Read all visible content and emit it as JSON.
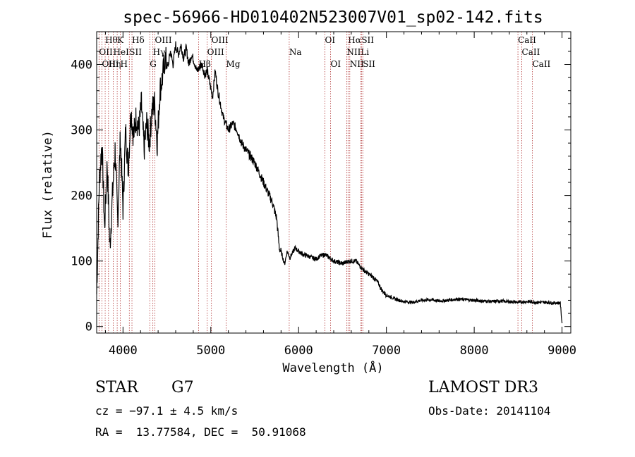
{
  "chart_data": {
    "type": "line",
    "title": "spec-56966-HD010402N523007V01_sp02-142.fits",
    "xlabel": "Wavelength (Å)",
    "ylabel": "Flux (relative)",
    "xlim": [
      3700,
      9100
    ],
    "ylim": [
      -10,
      450
    ],
    "x_ticks": [
      4000,
      5000,
      6000,
      7000,
      8000,
      9000
    ],
    "y_ticks": [
      0,
      100,
      200,
      300,
      400
    ],
    "grid": false,
    "series": [
      {
        "x": [
          3700,
          3730,
          3760,
          3790,
          3820,
          3850,
          3880,
          3910,
          3940,
          3970,
          4000,
          4030,
          4060,
          4090,
          4120,
          4150,
          4180,
          4210,
          4240,
          4270,
          4300,
          4330,
          4360,
          4390,
          4420,
          4450,
          4480,
          4510,
          4540,
          4570,
          4600,
          4630,
          4660,
          4690,
          4720,
          4750,
          4780,
          4810,
          4840,
          4870,
          4900,
          4930,
          4960,
          4990,
          5020,
          5050,
          5080,
          5110,
          5140,
          5170,
          5200,
          5250,
          5300,
          5350,
          5400,
          5450,
          5500,
          5550,
          5600,
          5650,
          5700,
          5750,
          5780,
          5810,
          5840,
          5870,
          5900,
          5930,
          5960,
          6000,
          6050,
          6100,
          6150,
          6200,
          6250,
          6300,
          6350,
          6400,
          6450,
          6500,
          6550,
          6600,
          6650,
          6700,
          6750,
          6800,
          6850,
          6900,
          6950,
          7000,
          7050,
          7100,
          7150,
          7200,
          7300,
          7400,
          7500,
          7600,
          7700,
          7800,
          7900,
          8000,
          8100,
          8200,
          8300,
          8400,
          8500,
          8600,
          8700,
          8800,
          8900,
          8980,
          9000
        ],
        "y": [
          50,
          220,
          280,
          150,
          250,
          120,
          200,
          270,
          160,
          290,
          180,
          300,
          240,
          330,
          290,
          320,
          300,
          340,
          270,
          310,
          280,
          330,
          340,
          280,
          360,
          380,
          410,
          395,
          420,
          400,
          430,
          415,
          430,
          410,
          425,
          400,
          415,
          405,
          390,
          395,
          400,
          385,
          390,
          370,
          350,
          390,
          360,
          340,
          320,
          310,
          300,
          310,
          300,
          280,
          270,
          260,
          250,
          235,
          220,
          205,
          190,
          165,
          120,
          110,
          95,
          115,
          105,
          112,
          120,
          115,
          110,
          108,
          105,
          103,
          108,
          110,
          105,
          100,
          98,
          96,
          99,
          100,
          100,
          92,
          85,
          80,
          75,
          68,
          55,
          48,
          45,
          42,
          40,
          38,
          37,
          40,
          41,
          39,
          40,
          42,
          41,
          40,
          39,
          38,
          39,
          38,
          37,
          38,
          37,
          37,
          36,
          36,
          5
        ]
      }
    ],
    "line_markers": [
      {
        "label": "Hθ",
        "x": 3797,
        "row": 0
      },
      {
        "label": "K",
        "x": 3934,
        "row": 0
      },
      {
        "label": "Hδ",
        "x": 4102,
        "row": 0
      },
      {
        "label": "OIII",
        "x": 4363,
        "row": 0
      },
      {
        "label": "OIII",
        "x": 5007,
        "row": 0
      },
      {
        "label": "OI",
        "x": 6300,
        "row": 0
      },
      {
        "label": "Hα",
        "x": 6563,
        "row": 0
      },
      {
        "label": "SII",
        "x": 6716,
        "row": 0
      },
      {
        "label": "CaII",
        "x": 8498,
        "row": 0
      },
      {
        "label": "OII",
        "x": 3727,
        "row": 1
      },
      {
        "label": "HeI",
        "x": 3889,
        "row": 1
      },
      {
        "label": "SII",
        "x": 4072,
        "row": 1
      },
      {
        "label": "Hγ",
        "x": 4340,
        "row": 1
      },
      {
        "label": "OIII",
        "x": 4959,
        "row": 1
      },
      {
        "label": "Na",
        "x": 5893,
        "row": 1
      },
      {
        "label": "NII",
        "x": 6548,
        "row": 1
      },
      {
        "label": "Li",
        "x": 6708,
        "row": 1
      },
      {
        "label": "CaII",
        "x": 8542,
        "row": 1
      },
      {
        "label": "OIII",
        "x": 3760,
        "row": 2
      },
      {
        "label": "Hη",
        "x": 3835,
        "row": 2
      },
      {
        "label": "H",
        "x": 3969,
        "row": 2
      },
      {
        "label": "G",
        "x": 4305,
        "row": 2
      },
      {
        "label": "Hβ",
        "x": 4861,
        "row": 2
      },
      {
        "label": "Mg",
        "x": 5175,
        "row": 2
      },
      {
        "label": "OI",
        "x": 6364,
        "row": 2
      },
      {
        "label": "NII",
        "x": 6583,
        "row": 2
      },
      {
        "label": "SII",
        "x": 6731,
        "row": 2
      },
      {
        "label": "CaII",
        "x": 8662,
        "row": 2
      }
    ]
  },
  "info": {
    "object_class": "STAR",
    "subclass": "G7",
    "survey": "LAMOST DR3",
    "cz": "cz = −97.1 ± 4.5 km/s",
    "obs_date": "Obs-Date: 20141104",
    "coords": "RA =  13.77584, DEC =  50.91068"
  }
}
